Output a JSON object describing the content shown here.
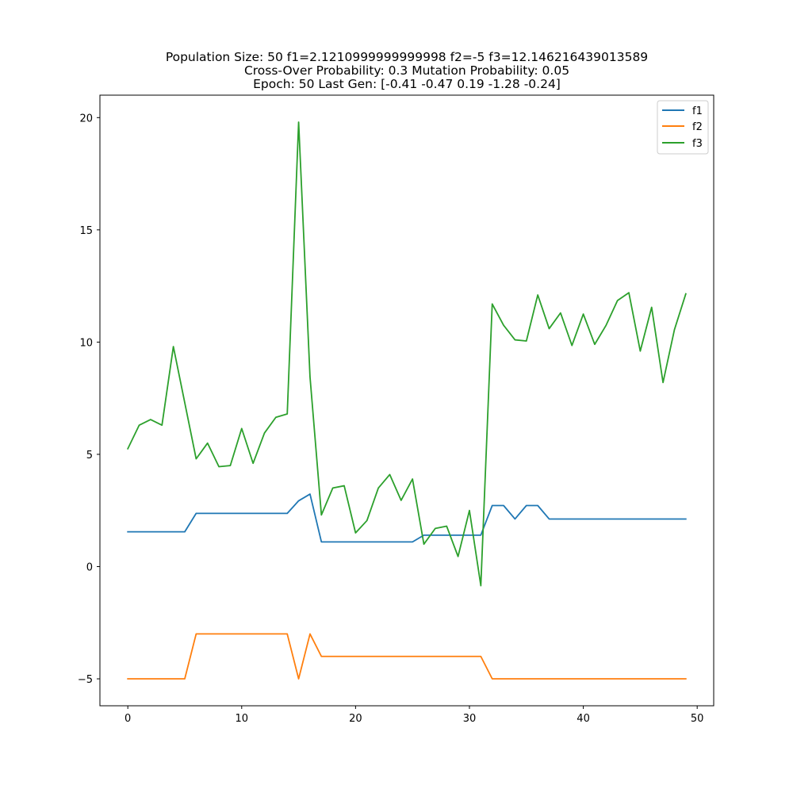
{
  "chart_data": {
    "type": "line",
    "title": [
      "Population Size: 50 f1=2.1210999999999998 f2=-5 f3=12.146216439013589",
      "Cross-Over Probability: 0.3 Mutation Probability: 0.05",
      "Epoch: 50 Last Gen: [-0.41 -0.47  0.19 -1.28 -0.24]"
    ],
    "xlabel": "",
    "ylabel": "",
    "xlim": [
      -2.45,
      51.45
    ],
    "ylim": [
      -6.2,
      21.0
    ],
    "xticks": [
      0,
      10,
      20,
      30,
      40,
      50
    ],
    "yticks": [
      -5,
      0,
      5,
      10,
      15,
      20
    ],
    "ytick_labels": [
      "−5",
      "0",
      "5",
      "10",
      "15",
      "20"
    ],
    "grid": false,
    "legend_position": "top-right",
    "x": [
      0,
      1,
      2,
      3,
      4,
      5,
      6,
      7,
      8,
      9,
      10,
      11,
      12,
      13,
      14,
      15,
      16,
      17,
      18,
      19,
      20,
      21,
      22,
      23,
      24,
      25,
      26,
      27,
      28,
      29,
      30,
      31,
      32,
      33,
      34,
      35,
      36,
      37,
      38,
      39,
      40,
      41,
      42,
      43,
      44,
      45,
      46,
      47,
      48,
      49
    ],
    "series": [
      {
        "name": "f1",
        "color": "#1f77b4",
        "values": [
          1.55,
          1.55,
          1.55,
          1.55,
          1.55,
          1.55,
          2.37,
          2.37,
          2.37,
          2.37,
          2.37,
          2.37,
          2.37,
          2.37,
          2.37,
          2.93,
          3.23,
          1.1,
          1.1,
          1.1,
          1.1,
          1.1,
          1.1,
          1.1,
          1.1,
          1.1,
          1.4,
          1.4,
          1.4,
          1.4,
          1.4,
          1.4,
          2.72,
          2.72,
          2.12,
          2.72,
          2.72,
          2.12,
          2.12,
          2.12,
          2.12,
          2.12,
          2.12,
          2.12,
          2.12,
          2.12,
          2.12,
          2.12,
          2.12,
          2.12
        ]
      },
      {
        "name": "f2",
        "color": "#ff7f0e",
        "values": [
          -5,
          -5,
          -5,
          -5,
          -5,
          -5,
          -3,
          -3,
          -3,
          -3,
          -3,
          -3,
          -3,
          -3,
          -3,
          -5,
          -3,
          -4,
          -4,
          -4,
          -4,
          -4,
          -4,
          -4,
          -4,
          -4,
          -4,
          -4,
          -4,
          -4,
          -4,
          -4,
          -5,
          -5,
          -5,
          -5,
          -5,
          -5,
          -5,
          -5,
          -5,
          -5,
          -5,
          -5,
          -5,
          -5,
          -5,
          -5,
          -5,
          -5
        ]
      },
      {
        "name": "f3",
        "color": "#2ca02c",
        "values": [
          5.25,
          6.3,
          6.55,
          6.3,
          9.8,
          7.3,
          4.8,
          5.5,
          4.45,
          4.5,
          6.15,
          4.6,
          5.95,
          6.65,
          6.8,
          19.8,
          8.45,
          2.3,
          3.5,
          3.6,
          1.5,
          2.05,
          3.5,
          4.1,
          2.95,
          3.9,
          1.0,
          1.7,
          1.8,
          0.45,
          2.5,
          -0.85,
          11.7,
          10.75,
          10.1,
          10.05,
          12.1,
          10.6,
          11.3,
          9.85,
          11.25,
          9.9,
          10.75,
          11.85,
          12.2,
          9.6,
          11.55,
          8.2,
          10.55,
          12.15
        ]
      }
    ]
  }
}
